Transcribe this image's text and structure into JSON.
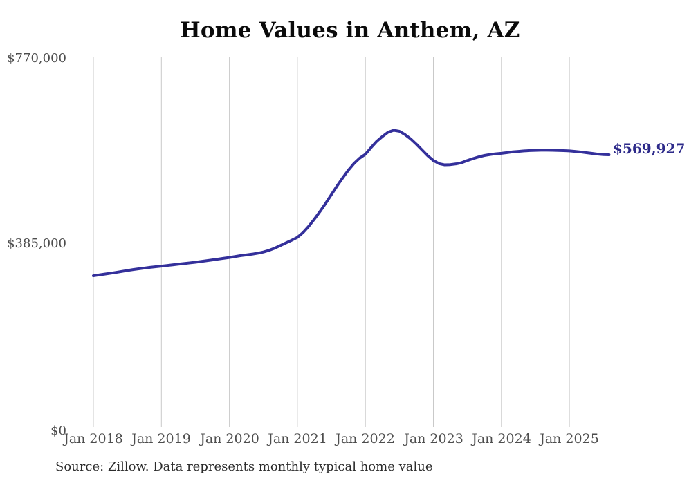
{
  "title": "Home Values in Anthem, AZ",
  "end_label": "$569,927",
  "source": "Source: Zillow. Data represents monthly typical home value",
  "colors": {
    "line": "#34309b",
    "end_label": "#2d2a8a",
    "grid": "#c9c9c9",
    "axis_text": "#4d4d4d",
    "title_text": "#0b0b0b",
    "source_text": "#2b2b2b"
  },
  "y_axis": {
    "labels": [
      "$770,000",
      "$385,000",
      "$0"
    ],
    "min": 0,
    "max": 770000
  },
  "x_axis": {
    "labels": [
      "Jan 2018",
      "Jan 2019",
      "Jan 2020",
      "Jan 2021",
      "Jan 2022",
      "Jan 2023",
      "Jan 2024",
      "Jan 2025"
    ]
  },
  "chart_data": {
    "type": "line",
    "title": "Home Values in Anthem, AZ",
    "unit": "USD",
    "ylabel": "",
    "xlabel": "",
    "ylim": [
      0,
      770000
    ],
    "y_ticks": [
      0,
      385000,
      770000
    ],
    "x_tick_labels": [
      "Jan 2018",
      "Jan 2019",
      "Jan 2020",
      "Jan 2021",
      "Jan 2022",
      "Jan 2023",
      "Jan 2024",
      "Jan 2025"
    ],
    "grid": "vertical-only",
    "legend": "none",
    "final_value_label": "$569,927",
    "x": [
      "2018-01",
      "2018-02",
      "2018-03",
      "2018-04",
      "2018-05",
      "2018-06",
      "2018-07",
      "2018-08",
      "2018-09",
      "2018-10",
      "2018-11",
      "2018-12",
      "2019-01",
      "2019-02",
      "2019-03",
      "2019-04",
      "2019-05",
      "2019-06",
      "2019-07",
      "2019-08",
      "2019-09",
      "2019-10",
      "2019-11",
      "2019-12",
      "2020-01",
      "2020-02",
      "2020-03",
      "2020-04",
      "2020-05",
      "2020-06",
      "2020-07",
      "2020-08",
      "2020-09",
      "2020-10",
      "2020-11",
      "2020-12",
      "2021-01",
      "2021-02",
      "2021-03",
      "2021-04",
      "2021-05",
      "2021-06",
      "2021-07",
      "2021-08",
      "2021-09",
      "2021-10",
      "2021-11",
      "2021-12",
      "2022-01",
      "2022-02",
      "2022-03",
      "2022-04",
      "2022-05",
      "2022-06",
      "2022-07",
      "2022-08",
      "2022-09",
      "2022-10",
      "2022-11",
      "2022-12",
      "2023-01",
      "2023-02",
      "2023-03",
      "2023-04",
      "2023-05",
      "2023-06",
      "2023-07",
      "2023-08",
      "2023-09",
      "2023-10",
      "2023-11",
      "2023-12",
      "2024-01",
      "2024-02",
      "2024-03",
      "2024-04",
      "2024-05",
      "2024-06",
      "2024-07",
      "2024-08",
      "2024-09",
      "2024-10",
      "2024-11",
      "2024-12",
      "2025-01",
      "2025-02",
      "2025-03",
      "2025-04",
      "2025-05",
      "2025-06",
      "2025-07",
      "2025-08"
    ],
    "series": [
      {
        "name": "Typical home value",
        "values": [
          318000,
          319800,
          321500,
          323200,
          325000,
          327000,
          329000,
          330800,
          332500,
          334000,
          335500,
          336800,
          338000,
          339400,
          340800,
          342200,
          343500,
          344800,
          346200,
          347800,
          349400,
          351000,
          352700,
          354400,
          356000,
          358000,
          360000,
          361500,
          363000,
          365000,
          367500,
          371000,
          375500,
          381000,
          386500,
          392000,
          398000,
          408000,
          421000,
          436000,
          452000,
          469000,
          487000,
          505000,
          522000,
          538000,
          552000,
          563000,
          571000,
          585000,
          598000,
          608000,
          617000,
          621000,
          619000,
          612000,
          603000,
          592000,
          580000,
          568000,
          558000,
          551500,
          549000,
          549500,
          551000,
          553500,
          558000,
          562000,
          565500,
          568500,
          570500,
          572000,
          573000,
          574500,
          576000,
          577000,
          578000,
          578700,
          579200,
          579500,
          579500,
          579300,
          579000,
          578500,
          578000,
          577000,
          575800,
          574300,
          572800,
          571300,
          570300,
          569927
        ]
      }
    ]
  }
}
